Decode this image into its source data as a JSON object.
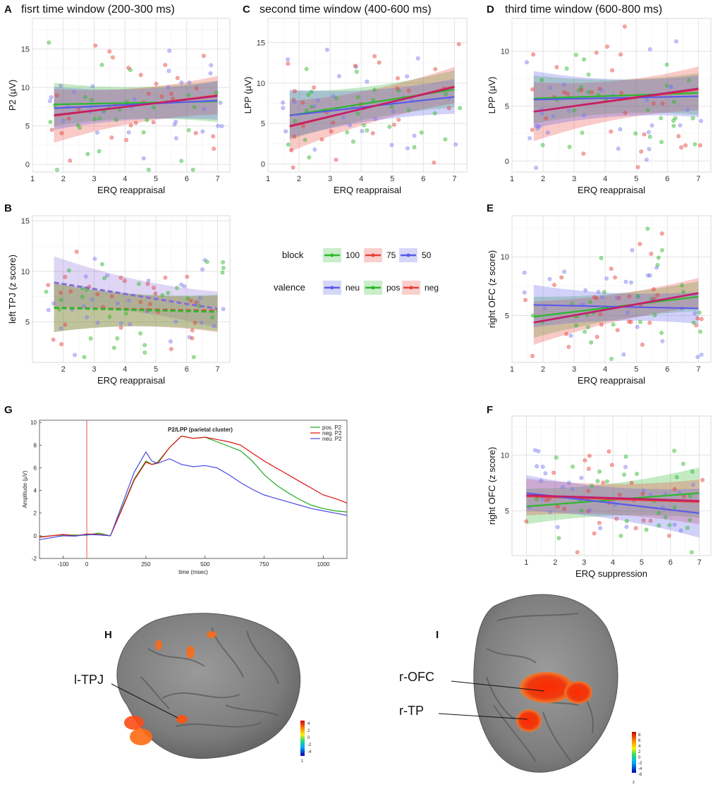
{
  "legend": {
    "block_title": "block",
    "block_items": [
      {
        "label": "100",
        "color": "#2db82d"
      },
      {
        "label": "75",
        "color": "#e8403a"
      },
      {
        "label": "50",
        "color": "#5a5ae8"
      }
    ],
    "valence_title": "valence",
    "valence_items": [
      {
        "label": "neu",
        "color": "#5a5ae8"
      },
      {
        "label": "pos",
        "color": "#2db82d"
      },
      {
        "label": "neg",
        "color": "#e8403a"
      }
    ]
  },
  "colors": {
    "green": "#2db82d",
    "red": "#e8403a",
    "blue": "#5a5ae8",
    "magenta": "#c21f6a"
  },
  "chart_data": [
    {
      "panel": "A",
      "type": "scatter",
      "title": "fisrt time window (200-300 ms)",
      "xlabel": "ERQ reappraisal",
      "ylabel": "P2 (µV)",
      "xlim": [
        1,
        7.4
      ],
      "ylim": [
        -1,
        19
      ],
      "xticks": [
        1,
        2,
        3,
        4,
        5,
        6,
        7
      ],
      "yticks": [
        0,
        5,
        10,
        15
      ],
      "lines": [
        {
          "series": "100",
          "color": "#2db82d",
          "x": [
            1.7,
            7
          ],
          "y": [
            7.8,
            8.2
          ],
          "band": [
            [
              5.0,
              10.6
            ],
            [
              5.5,
              10.9
            ]
          ]
        },
        {
          "series": "75",
          "color": "#e8403a",
          "x": [
            1.7,
            7
          ],
          "y": [
            6.3,
            9.0
          ],
          "band": [
            [
              2.8,
              9.8
            ],
            [
              6.5,
              11.5
            ]
          ]
        },
        {
          "series": "50",
          "color": "#5a5ae8",
          "x": [
            1.7,
            7
          ],
          "y": [
            7.3,
            8.3
          ],
          "band": [
            [
              4.5,
              10.1
            ],
            [
              5.8,
              10.8
            ]
          ]
        }
      ],
      "fit_line": {
        "color": "#c21f6a",
        "x": [
          1.7,
          7
        ],
        "y": [
          6.4,
          8.9
        ]
      },
      "points_seed": 11
    },
    {
      "panel": "C",
      "type": "scatter",
      "title": "second time window (400-600 ms)",
      "xlabel": "ERQ reappraisal",
      "ylabel": "LPP (µV)",
      "xlim": [
        1,
        7.4
      ],
      "ylim": [
        -1,
        18
      ],
      "xticks": [
        1,
        2,
        3,
        4,
        5,
        6,
        7
      ],
      "yticks": [
        0,
        5,
        10,
        15
      ],
      "lines": [
        {
          "series": "100",
          "color": "#2db82d",
          "x": [
            1.7,
            7
          ],
          "y": [
            6.0,
            9.2
          ],
          "band": [
            [
              3.0,
              9.0
            ],
            [
              7.0,
              11.6
            ]
          ]
        },
        {
          "series": "75",
          "color": "#e8403a",
          "x": [
            1.7,
            7
          ],
          "y": [
            4.6,
            9.6
          ],
          "band": [
            [
              1.5,
              7.8
            ],
            [
              7.5,
              12.0
            ]
          ]
        },
        {
          "series": "50",
          "color": "#5a5ae8",
          "x": [
            1.7,
            7
          ],
          "y": [
            6.0,
            8.3
          ],
          "band": [
            [
              3.2,
              9.2
            ],
            [
              6.2,
              10.5
            ]
          ]
        }
      ],
      "fit_line": {
        "color": "#c21f6a",
        "x": [
          1.7,
          7
        ],
        "y": [
          4.7,
          9.5
        ]
      },
      "points_seed": 23
    },
    {
      "panel": "D",
      "type": "scatter",
      "title": "third time window (600-800 ms)",
      "xlabel": "ERQ reappraisal",
      "ylabel": "LPP (µV)",
      "xlim": [
        1,
        7.4
      ],
      "ylim": [
        -1,
        13
      ],
      "xticks": [
        1,
        2,
        3,
        4,
        5,
        6,
        7
      ],
      "yticks": [
        0,
        5,
        10
      ],
      "lines": [
        {
          "series": "100",
          "color": "#2db82d",
          "x": [
            1.7,
            7
          ],
          "y": [
            5.7,
            6.2
          ],
          "band": [
            [
              3.4,
              7.8
            ],
            [
              4.2,
              8.0
            ]
          ]
        },
        {
          "series": "75",
          "color": "#e8403a",
          "x": [
            1.7,
            7
          ],
          "y": [
            4.5,
            6.5
          ],
          "band": [
            [
              1.8,
              7.2
            ],
            [
              4.6,
              8.6
            ]
          ]
        },
        {
          "series": "50",
          "color": "#5a5ae8",
          "x": [
            1.7,
            7
          ],
          "y": [
            5.6,
            5.9
          ],
          "band": [
            [
              3.0,
              8.2
            ],
            [
              4.0,
              7.8
            ]
          ]
        }
      ],
      "fit_line": {
        "color": "#c21f6a",
        "x": [
          1.7,
          7
        ],
        "y": [
          4.5,
          6.6
        ]
      },
      "points_seed": 37
    },
    {
      "panel": "B",
      "type": "scatter",
      "title": "",
      "xlabel": "ERQ reappraisal",
      "ylabel": "left TPJ (z score)",
      "xlim": [
        1,
        7.4
      ],
      "ylim": [
        1,
        15.5
      ],
      "xticks": [
        2,
        3,
        4,
        5,
        6,
        7
      ],
      "yticks": [
        5,
        10,
        15
      ],
      "lines": [
        {
          "series": "50",
          "color": "#8a6ad8",
          "x": [
            1.7,
            7
          ],
          "y": [
            8.9,
            6.3
          ],
          "band": [
            [
              6.5,
              11.5
            ],
            [
              4.4,
              8.0
            ]
          ],
          "dashed": true
        },
        {
          "series": "75",
          "color": "#e8403a",
          "x": [
            1.7,
            7
          ],
          "y": [
            6.4,
            6.1
          ],
          "band": [
            [
              4.0,
              8.8
            ],
            [
              4.0,
              7.6
            ]
          ],
          "dashed": true
        },
        {
          "series": "100",
          "color": "#2db82d",
          "x": [
            1.7,
            7
          ],
          "y": [
            6.4,
            6.0
          ],
          "band": [
            [
              4.0,
              8.9
            ],
            [
              4.1,
              7.7
            ]
          ],
          "dashed": true
        }
      ],
      "fit_line": null,
      "points_seed": 53
    },
    {
      "panel": "E",
      "type": "scatter",
      "title": "",
      "xlabel": "ERQ reappraisal",
      "ylabel": "right OFC (z score)",
      "xlim": [
        1,
        7.4
      ],
      "ylim": [
        1,
        13.5
      ],
      "xticks": [
        1,
        2,
        3,
        4,
        5,
        6,
        7
      ],
      "yticks": [
        5,
        10
      ],
      "lines": [
        {
          "series": "100",
          "color": "#2db82d",
          "x": [
            1.7,
            7
          ],
          "y": [
            4.9,
            6.6
          ],
          "band": [
            [
              3.1,
              6.6
            ],
            [
              5.4,
              7.9
            ]
          ]
        },
        {
          "series": "75",
          "color": "#e8403a",
          "x": [
            1.7,
            7
          ],
          "y": [
            4.4,
            6.9
          ],
          "band": [
            [
              2.5,
              6.2
            ],
            [
              5.7,
              8.2
            ]
          ]
        },
        {
          "series": "50",
          "color": "#5a5ae8",
          "x": [
            1.7,
            7
          ],
          "y": [
            5.9,
            5.6
          ],
          "band": [
            [
              4.0,
              7.6
            ],
            [
              4.3,
              7.0
            ]
          ]
        }
      ],
      "fit_line": {
        "color": "#c21f6a",
        "x": [
          1.7,
          7
        ],
        "y": [
          4.4,
          6.9
        ]
      },
      "points_seed": 71
    },
    {
      "panel": "F",
      "type": "scatter",
      "title": "",
      "xlabel": "ERQ suppression",
      "ylabel": "right OFC (z score)",
      "xlim": [
        0.5,
        7.4
      ],
      "ylim": [
        1,
        13.5
      ],
      "xticks": [
        1,
        2,
        3,
        4,
        5,
        6,
        7
      ],
      "yticks": [
        5,
        10
      ],
      "lines": [
        {
          "series": "100",
          "color": "#2db82d",
          "x": [
            1,
            7
          ],
          "y": [
            5.4,
            6.6
          ],
          "band": [
            [
              3.8,
              7.0
            ],
            [
              4.4,
              8.9
            ]
          ]
        },
        {
          "series": "75",
          "color": "#e8403a",
          "x": [
            1,
            7
          ],
          "y": [
            6.3,
            5.8
          ],
          "band": [
            [
              4.6,
              7.9
            ],
            [
              3.8,
              7.8
            ]
          ]
        },
        {
          "series": "50",
          "color": "#5a5ae8",
          "x": [
            1,
            7
          ],
          "y": [
            6.6,
            4.8
          ],
          "band": [
            [
              5.0,
              8.2
            ],
            [
              2.6,
              7.0
            ]
          ]
        }
      ],
      "fit_line": {
        "color": "#c21f6a",
        "x": [
          1,
          7
        ],
        "y": [
          6.4,
          5.9
        ]
      },
      "points_seed": 89
    },
    {
      "panel": "G",
      "type": "line",
      "title": "P2/LPP (parietal cluster)",
      "xlabel": "time (msec)",
      "ylabel": "Amplitude (µV)",
      "xlim": [
        -200,
        1100
      ],
      "ylim": [
        -2,
        10.2
      ],
      "xticks": [
        -100,
        0,
        250,
        500,
        750,
        1000
      ],
      "yticks": [
        -2,
        0,
        2,
        4,
        6,
        8,
        10
      ],
      "onset_marker": 0,
      "legend": [
        "pos. P2",
        "neg. P2",
        "neu. P2"
      ],
      "series": [
        {
          "name": "pos. P2",
          "color": "#1fa81f",
          "x": [
            -200,
            -100,
            -50,
            0,
            50,
            100,
            150,
            200,
            250,
            275,
            300,
            350,
            400,
            450,
            500,
            550,
            600,
            650,
            700,
            750,
            800,
            850,
            900,
            950,
            1000,
            1050,
            1100
          ],
          "y": [
            -0.2,
            0,
            0.1,
            0.05,
            0.2,
            0,
            2.5,
            5.0,
            6.6,
            6.3,
            6.5,
            7.8,
            8.8,
            8.6,
            8.7,
            8.3,
            7.9,
            7.5,
            6.6,
            5.4,
            4.5,
            3.8,
            3.2,
            2.7,
            2.4,
            2.2,
            2.1
          ]
        },
        {
          "name": "neg. P2",
          "color": "#e01010",
          "x": [
            -200,
            -100,
            -50,
            0,
            50,
            100,
            150,
            200,
            250,
            275,
            300,
            350,
            400,
            450,
            500,
            550,
            600,
            650,
            700,
            750,
            800,
            850,
            900,
            950,
            1000,
            1050,
            1100
          ],
          "y": [
            -0.2,
            0,
            0.1,
            0.05,
            0.2,
            0,
            2.4,
            4.9,
            6.5,
            6.3,
            6.4,
            7.8,
            8.8,
            8.6,
            8.7,
            8.5,
            8.3,
            8.0,
            7.3,
            6.6,
            6.0,
            5.4,
            4.8,
            4.2,
            3.6,
            3.3,
            2.9
          ]
        },
        {
          "name": "neu. P2",
          "color": "#4a4ae8",
          "x": [
            -200,
            -100,
            -50,
            0,
            50,
            100,
            150,
            200,
            250,
            275,
            300,
            350,
            400,
            450,
            500,
            550,
            600,
            650,
            700,
            750,
            800,
            850,
            900,
            950,
            1000,
            1050,
            1100
          ],
          "y": [
            -0.3,
            -0.05,
            0.05,
            0.0,
            0.2,
            0,
            2.8,
            5.6,
            7.4,
            6.6,
            6.4,
            6.8,
            6.3,
            6.1,
            6.2,
            6.0,
            5.4,
            4.7,
            4.1,
            3.6,
            3.3,
            3.0,
            2.7,
            2.4,
            2.2,
            2.0,
            1.8
          ]
        }
      ]
    }
  ],
  "panel_letters": {
    "A": "A",
    "B": "B",
    "C": "C",
    "D": "D",
    "E": "E",
    "F": "F",
    "G": "G",
    "H": "H",
    "I": "I"
  },
  "brain": {
    "H_label": "l-TPJ",
    "I_label_1": "r-OFC",
    "I_label_2": "r-TP",
    "H_colorbar_ticks": [
      "4",
      "2",
      "0",
      "-2",
      "-4"
    ],
    "I_colorbar_ticks": [
      "8",
      "6",
      "4",
      "2",
      "0",
      "-2",
      "-4",
      "-6"
    ],
    "colorbar_unit": "z"
  }
}
